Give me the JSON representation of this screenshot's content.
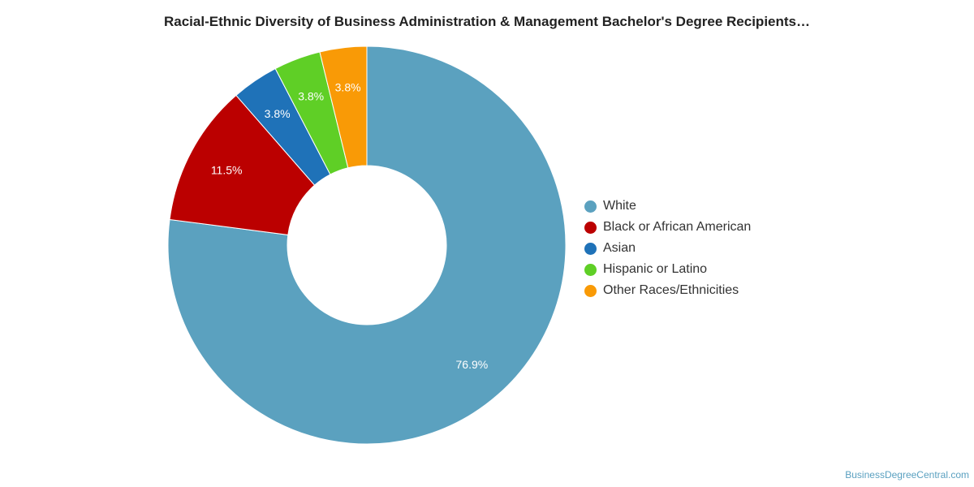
{
  "chart_data": {
    "type": "pie",
    "title": "Racial-Ethnic Diversity of Business Administration & Management Bachelor's Degree Recipients…",
    "categories": [
      "White",
      "Black or African American",
      "Asian",
      "Hispanic or Latino",
      "Other Races/Ethnicities"
    ],
    "values": [
      76.9,
      11.5,
      3.8,
      3.8,
      3.8
    ],
    "data_labels": [
      "76.9%",
      "11.5%",
      "3.8%",
      "3.8%",
      "3.8%"
    ],
    "colors": [
      "#5ba1bf",
      "#bb0000",
      "#1f72b8",
      "#5fcf26",
      "#f99a06"
    ],
    "donut": true,
    "legend": "right"
  },
  "source": "BusinessDegreeCentral.com"
}
